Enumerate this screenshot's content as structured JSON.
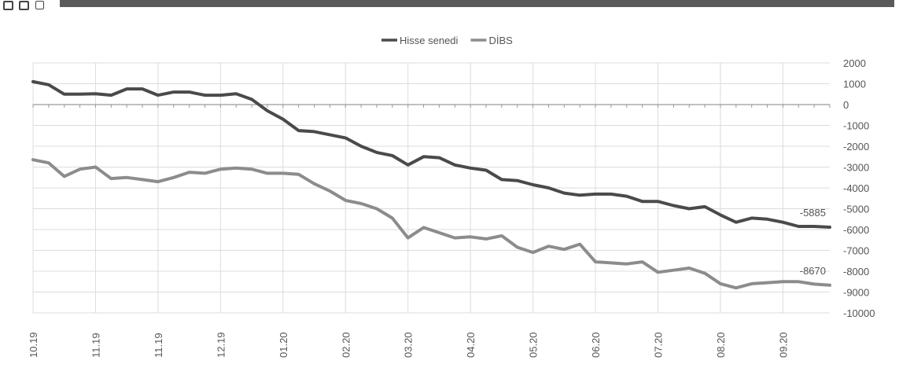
{
  "window": {
    "controls": [
      "window-control",
      "window-control",
      "window-control"
    ]
  },
  "chart_data": {
    "type": "line",
    "title": "",
    "xlabel": "",
    "ylabel": "",
    "ylim": [
      -10000,
      2000
    ],
    "yticks": [
      2000,
      1000,
      0,
      -1000,
      -2000,
      -3000,
      -4000,
      -5000,
      -6000,
      -7000,
      -8000,
      -9000,
      -10000
    ],
    "ytick_labels": [
      "2000",
      "1000",
      "0",
      "-1000",
      "-2000",
      "-3000",
      "-4000",
      "-5000",
      "-6000",
      "-7000",
      "-8000",
      "-9000",
      "-10000"
    ],
    "x_labels": [
      {
        "index": 0,
        "label": "10.19"
      },
      {
        "index": 4,
        "label": "11.19"
      },
      {
        "index": 8,
        "label": "11.19"
      },
      {
        "index": 12,
        "label": "12.19"
      },
      {
        "index": 16,
        "label": "01.20"
      },
      {
        "index": 20,
        "label": "02.20"
      },
      {
        "index": 24,
        "label": "03.20"
      },
      {
        "index": 28,
        "label": "04.20"
      },
      {
        "index": 32,
        "label": "05.20"
      },
      {
        "index": 36,
        "label": "06.20"
      },
      {
        "index": 40,
        "label": "07.20"
      },
      {
        "index": 44,
        "label": "08.20"
      },
      {
        "index": 48,
        "label": "09.20"
      }
    ],
    "grid": true,
    "legend_position": "top-center",
    "series": [
      {
        "name": "Hisse senedi",
        "color": "#4a4a4a",
        "values": [
          1100,
          950,
          500,
          500,
          520,
          450,
          750,
          750,
          450,
          600,
          600,
          450,
          450,
          520,
          250,
          -300,
          -700,
          -1250,
          -1300,
          -1450,
          -1600,
          -2000,
          -2300,
          -2450,
          -2900,
          -2500,
          -2550,
          -2900,
          -3050,
          -3150,
          -3600,
          -3650,
          -3850,
          -4000,
          -4250,
          -4350,
          -4300,
          -4300,
          -4400,
          -4650,
          -4650,
          -4850,
          -5000,
          -4900,
          -5300,
          -5650,
          -5450,
          -5500,
          -5650,
          -5850,
          -5850,
          -5885
        ]
      },
      {
        "name": "DİBS",
        "color": "#8c8c8c",
        "values": [
          -2650,
          -2800,
          -3450,
          -3100,
          -3000,
          -3550,
          -3500,
          -3600,
          -3700,
          -3500,
          -3250,
          -3300,
          -3100,
          -3050,
          -3100,
          -3300,
          -3300,
          -3350,
          -3800,
          -4150,
          -4600,
          -4750,
          -5000,
          -5450,
          -6400,
          -5900,
          -6150,
          -6400,
          -6350,
          -6450,
          -6300,
          -6850,
          -7100,
          -6800,
          -6950,
          -6700,
          -7550,
          -7600,
          -7650,
          -7550,
          -8050,
          -7950,
          -7850,
          -8100,
          -8600,
          -8800,
          -8600,
          -8550,
          -8500,
          -8500,
          -8620,
          -8670
        ]
      }
    ],
    "annotations": [
      {
        "text": "-5885",
        "series": "Hisse senedi",
        "index": 51,
        "value": -5885
      },
      {
        "text": "-8670",
        "series": "DİBS",
        "index": 51,
        "value": -8670
      }
    ]
  }
}
